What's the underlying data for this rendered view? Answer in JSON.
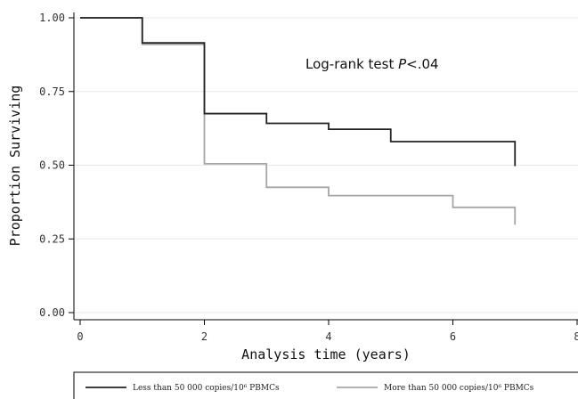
{
  "chart_data": {
    "type": "line",
    "step": true,
    "title": "",
    "xlabel": "Analysis time (years)",
    "ylabel": "Proportion Surviving",
    "xlim": [
      0,
      8
    ],
    "ylim": [
      0,
      1
    ],
    "x_ticks": [
      0,
      2,
      4,
      6,
      8
    ],
    "x_tick_labels": [
      "0",
      "2",
      "4",
      "6",
      "8"
    ],
    "y_ticks": [
      0,
      0.25,
      0.5,
      0.75,
      1
    ],
    "y_tick_labels": [
      "0.00",
      "0.25",
      "0.50",
      "0.75",
      "1.00"
    ],
    "grid": "horizontal",
    "legend_position": "bottom",
    "annotation": {
      "prefix": "Log-rank test ",
      "italic": "P",
      "suffix": "<.04"
    },
    "series": [
      {
        "name": "Less than 50 000 copies/10⁶ PBMCs",
        "color": "#222222",
        "x": [
          0,
          1,
          2,
          3,
          4,
          5,
          7
        ],
        "y": [
          1.0,
          0.915,
          0.675,
          0.642,
          0.622,
          0.58,
          0.497
        ],
        "end_x": 7
      },
      {
        "name": "More than 50 000 copies/10⁶ PBMCs",
        "color": "#a6a6a6",
        "x": [
          0,
          1,
          2,
          3,
          4,
          6,
          7
        ],
        "y": [
          1.0,
          0.91,
          0.505,
          0.425,
          0.397,
          0.357,
          0.298
        ],
        "end_x": 7
      }
    ]
  }
}
